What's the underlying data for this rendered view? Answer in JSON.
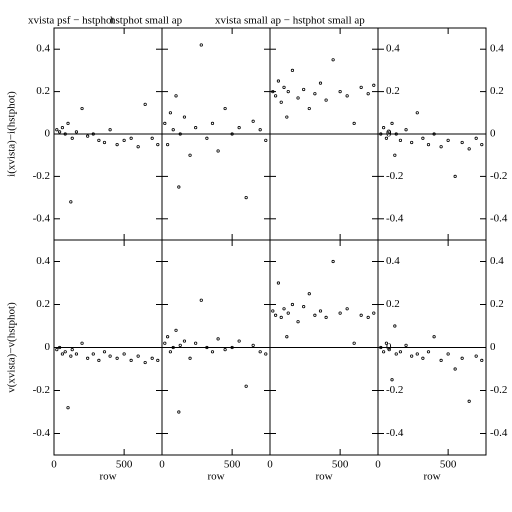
{
  "chart_data": [
    {
      "type": "scatter",
      "title": "xvista psf − hstphot",
      "ylabel": "i(xvista)−i(hstphot)",
      "ytick_labels": true,
      "x": [
        20,
        40,
        60,
        80,
        100,
        120,
        130,
        160,
        200,
        240,
        280,
        320,
        360,
        400,
        450,
        500,
        550,
        600,
        650,
        700,
        740
      ],
      "y": [
        0.02,
        0.01,
        0.03,
        0.0,
        0.05,
        -0.32,
        -0.02,
        0.01,
        0.12,
        -0.01,
        0.0,
        -0.03,
        -0.04,
        0.02,
        -0.05,
        -0.03,
        -0.02,
        -0.06,
        0.14,
        -0.02,
        -0.05
      ],
      "xlim": [
        0,
        770
      ],
      "ylim": [
        -0.5,
        0.5
      ],
      "xticks": [
        0,
        500
      ],
      "yticks": [
        -0.4,
        -0.2,
        0,
        0.2,
        0.4
      ],
      "hline": 0
    },
    {
      "type": "scatter",
      "title": "hstphot small ap",
      "ytick_labels": false,
      "x": [
        20,
        40,
        60,
        80,
        100,
        120,
        130,
        160,
        200,
        240,
        280,
        320,
        360,
        400,
        450,
        500,
        550,
        600,
        650,
        700,
        740
      ],
      "y": [
        0.05,
        -0.05,
        0.1,
        0.02,
        0.18,
        -0.25,
        0.0,
        0.08,
        -0.1,
        0.03,
        0.42,
        -0.02,
        0.05,
        -0.08,
        0.12,
        0.0,
        0.03,
        -0.3,
        0.06,
        0.02,
        -0.03
      ],
      "xlim": [
        0,
        770
      ],
      "ylim": [
        -0.5,
        0.5
      ],
      "xticks": [
        0,
        500
      ],
      "yticks": [
        -0.4,
        -0.2,
        0,
        0.2,
        0.4
      ],
      "hline": 0
    },
    {
      "type": "scatter",
      "title": "xvista small ap − hstphot small ap",
      "ytick_labels": false,
      "x": [
        20,
        40,
        60,
        80,
        100,
        120,
        130,
        160,
        200,
        240,
        280,
        320,
        360,
        400,
        450,
        500,
        550,
        600,
        650,
        700,
        740
      ],
      "y": [
        0.2,
        0.18,
        0.25,
        0.15,
        0.22,
        0.08,
        0.2,
        0.3,
        0.17,
        0.21,
        0.12,
        0.19,
        0.24,
        0.16,
        0.35,
        0.2,
        0.18,
        0.05,
        0.22,
        0.19,
        0.23
      ],
      "xlim": [
        0,
        770
      ],
      "ylim": [
        -0.5,
        0.5
      ],
      "xticks": [
        0,
        500
      ],
      "yticks": [
        -0.4,
        -0.2,
        0,
        0.2,
        0.4
      ],
      "hline": 0
    },
    {
      "type": "scatter",
      "ytick_labels": true,
      "y2lim": [
        -0.5,
        0.5
      ],
      "y2ticks": [
        -0.4,
        -0.2,
        0,
        0.2,
        0.4
      ],
      "x": [
        20,
        40,
        60,
        80,
        100,
        120,
        130,
        160,
        200,
        240,
        280,
        320,
        360,
        400,
        450,
        500,
        550,
        600,
        650,
        700,
        740
      ],
      "y": [
        0.0,
        0.03,
        -0.02,
        0.01,
        0.05,
        -0.1,
        0.0,
        -0.03,
        0.02,
        -0.04,
        0.1,
        -0.02,
        -0.05,
        0.0,
        -0.06,
        -0.03,
        -0.2,
        -0.04,
        -0.07,
        -0.02,
        -0.05
      ],
      "xlim": [
        0,
        770
      ],
      "ylim": [
        -0.5,
        0.5
      ],
      "xticks": [
        0,
        500
      ],
      "yticks": [
        -0.4,
        -0.2,
        0,
        0.2,
        0.4
      ],
      "hline": 0
    },
    {
      "type": "scatter",
      "xlabel": "row",
      "ylabel": "v(xvista)−v(hstphot)",
      "ytick_labels": true,
      "x": [
        20,
        40,
        60,
        80,
        100,
        120,
        130,
        160,
        200,
        240,
        280,
        320,
        360,
        400,
        450,
        500,
        550,
        600,
        650,
        700,
        740
      ],
      "y": [
        -0.01,
        0.0,
        -0.03,
        -0.02,
        -0.28,
        -0.04,
        -0.01,
        -0.03,
        0.02,
        -0.05,
        -0.03,
        -0.06,
        -0.02,
        -0.04,
        -0.05,
        -0.03,
        -0.06,
        -0.04,
        -0.07,
        -0.05,
        -0.06
      ],
      "xlim": [
        0,
        770
      ],
      "ylim": [
        -0.5,
        0.5
      ],
      "xticks": [
        0,
        500
      ],
      "yticks": [
        -0.4,
        -0.2,
        0,
        0.2,
        0.4
      ],
      "hline": 0
    },
    {
      "type": "scatter",
      "xlabel": "row",
      "ytick_labels": false,
      "x": [
        20,
        40,
        60,
        80,
        100,
        120,
        130,
        160,
        200,
        240,
        280,
        320,
        360,
        400,
        450,
        500,
        550,
        600,
        650,
        700,
        740
      ],
      "y": [
        0.02,
        0.05,
        -0.02,
        0.0,
        0.08,
        -0.3,
        0.01,
        0.03,
        -0.05,
        0.02,
        0.22,
        0.0,
        -0.02,
        0.04,
        -0.01,
        0.0,
        0.03,
        -0.18,
        0.01,
        -0.02,
        -0.03
      ],
      "xlim": [
        0,
        770
      ],
      "ylim": [
        -0.5,
        0.5
      ],
      "xticks": [
        0,
        500
      ],
      "yticks": [
        -0.4,
        -0.2,
        0,
        0.2,
        0.4
      ],
      "hline": 0
    },
    {
      "type": "scatter",
      "xlabel": "row",
      "ytick_labels": false,
      "x": [
        20,
        40,
        60,
        80,
        100,
        120,
        130,
        160,
        200,
        240,
        280,
        320,
        360,
        400,
        450,
        500,
        550,
        600,
        650,
        700,
        740
      ],
      "y": [
        0.17,
        0.15,
        0.3,
        0.14,
        0.18,
        0.05,
        0.16,
        0.2,
        0.12,
        0.19,
        0.25,
        0.15,
        0.17,
        0.14,
        0.4,
        0.16,
        0.18,
        0.02,
        0.15,
        0.14,
        0.16
      ],
      "xlim": [
        0,
        770
      ],
      "ylim": [
        -0.5,
        0.5
      ],
      "xticks": [
        0,
        500
      ],
      "yticks": [
        -0.4,
        -0.2,
        0,
        0.2,
        0.4
      ],
      "hline": 0
    },
    {
      "type": "scatter",
      "xlabel": "row",
      "ytick_labels": true,
      "y2lim": [
        -0.5,
        0.5
      ],
      "y2ticks": [
        -0.4,
        -0.2,
        0,
        0.2,
        0.4
      ],
      "x": [
        20,
        40,
        60,
        80,
        100,
        120,
        130,
        160,
        200,
        240,
        280,
        320,
        360,
        400,
        450,
        500,
        550,
        600,
        650,
        700,
        740
      ],
      "y": [
        0.0,
        -0.02,
        0.02,
        -0.01,
        -0.15,
        0.1,
        -0.03,
        -0.02,
        0.01,
        -0.04,
        -0.03,
        -0.05,
        -0.02,
        0.05,
        -0.06,
        -0.03,
        -0.1,
        -0.05,
        -0.25,
        -0.04,
        -0.06
      ],
      "xlim": [
        0,
        770
      ],
      "ylim": [
        -0.5,
        0.5
      ],
      "xticks": [
        0,
        500
      ],
      "yticks": [
        -0.4,
        -0.2,
        0,
        0.2,
        0.4
      ],
      "hline": 0
    }
  ]
}
